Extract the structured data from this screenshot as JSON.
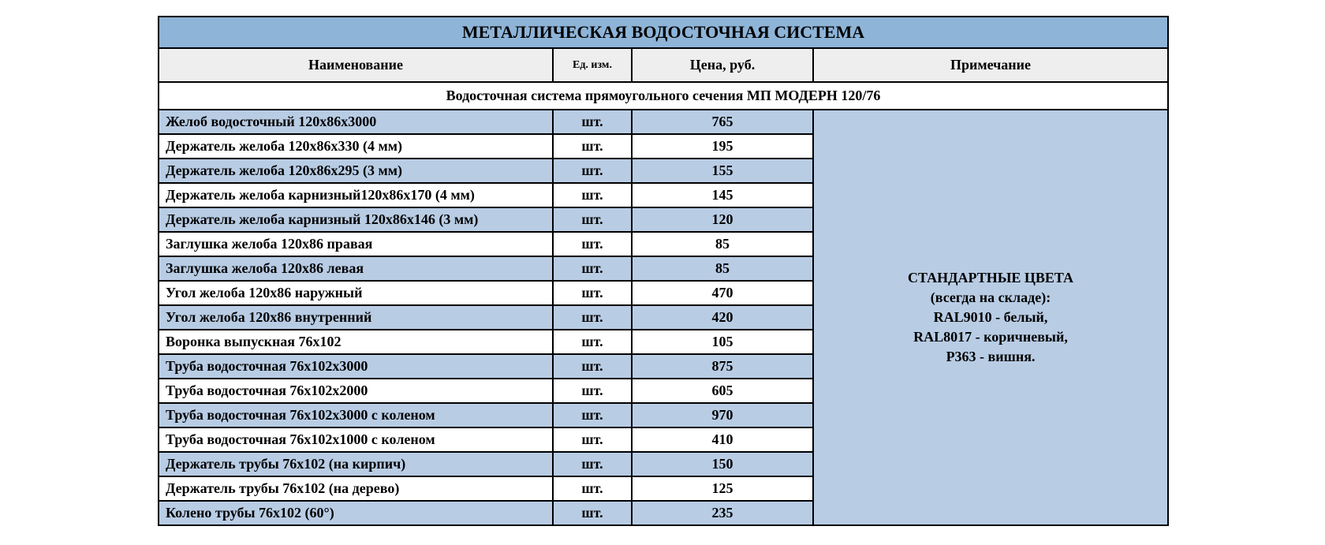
{
  "table": {
    "title": "МЕТАЛЛИЧЕСКАЯ ВОДОСТОЧНАЯ СИСТЕМА",
    "columns": {
      "name": "Наименование",
      "unit": "Ед. изм.",
      "price": "Цена, руб.",
      "note": "Примечание"
    },
    "section_title": "Водосточная система прямоугольного сечения МП МОДЕРН 120/76",
    "rows": [
      {
        "name": "Желоб водосточный 120х86х3000",
        "unit": "шт.",
        "price": "765",
        "alt": true
      },
      {
        "name": "Держатель желоба 120х86х330 (4 мм)",
        "unit": "шт.",
        "price": "195",
        "alt": false
      },
      {
        "name": "Держатель желоба 120х86х295 (3 мм)",
        "unit": "шт.",
        "price": "155",
        "alt": true
      },
      {
        "name": "Держатель желоба карнизный120х86х170 (4 мм)",
        "unit": "шт.",
        "price": "145",
        "alt": false
      },
      {
        "name": "Держатель желоба карнизный 120х86х146 (3 мм)",
        "unit": "шт.",
        "price": "120",
        "alt": true
      },
      {
        "name": "Заглушка желоба 120х86 правая",
        "unit": "шт.",
        "price": "85",
        "alt": false
      },
      {
        "name": "Заглушка желоба 120х86 левая",
        "unit": "шт.",
        "price": "85",
        "alt": true
      },
      {
        "name": "Угол желоба 120х86 наружный",
        "unit": "шт.",
        "price": "470",
        "alt": false
      },
      {
        "name": "Угол желоба 120х86 внутренний",
        "unit": "шт.",
        "price": "420",
        "alt": true
      },
      {
        "name": "Воронка выпускная 76х102",
        "unit": "шт.",
        "price": "105",
        "alt": false
      },
      {
        "name": "Труба водосточная 76х102х3000",
        "unit": "шт.",
        "price": "875",
        "alt": true
      },
      {
        "name": "Труба водосточная 76х102х2000",
        "unit": "шт.",
        "price": "605",
        "alt": false
      },
      {
        "name": "Труба водосточная 76х102х3000 с коленом",
        "unit": "шт.",
        "price": "970",
        "alt": true
      },
      {
        "name": "Труба водосточная 76х102х1000 с коленом",
        "unit": "шт.",
        "price": "410",
        "alt": false
      },
      {
        "name": "Держатель трубы 76х102 (на кирпич)",
        "unit": "шт.",
        "price": "150",
        "alt": true
      },
      {
        "name": "Держатель трубы 76х102 (на дерево)",
        "unit": "шт.",
        "price": "125",
        "alt": false
      },
      {
        "name": "Колено трубы 76х102 (60°)",
        "unit": "шт.",
        "price": "235",
        "alt": true
      }
    ],
    "note_lines": [
      "СТАНДАРТНЫЕ ЦВЕТА",
      "(всегда на складе):",
      "RAL9010 - белый,",
      "RAL8017 - коричневый,",
      "Р363 - вишня."
    ],
    "colors": {
      "title_bg": "#8eb4d8",
      "header_bg": "#eeeeee",
      "alt_row_bg": "#b8cce4",
      "row_bg": "#ffffff",
      "border": "#000000"
    }
  }
}
